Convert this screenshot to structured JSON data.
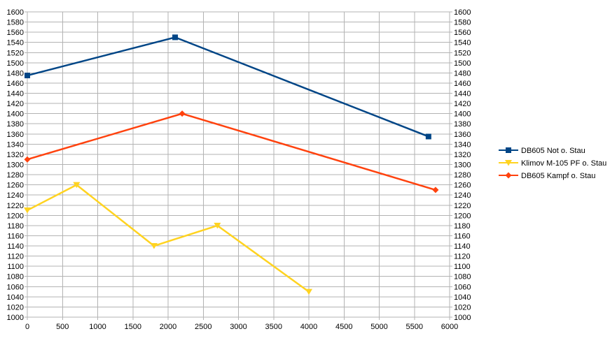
{
  "chart_data": {
    "type": "line",
    "xlim": [
      0,
      6000
    ],
    "ylim": [
      1000,
      1600
    ],
    "x_ticks": [
      0,
      500,
      1000,
      1500,
      2000,
      2500,
      3000,
      3500,
      4000,
      4500,
      5000,
      5500,
      6000
    ],
    "y_ticks": [
      1000,
      1020,
      1040,
      1060,
      1080,
      1100,
      1120,
      1140,
      1160,
      1180,
      1200,
      1220,
      1240,
      1260,
      1280,
      1300,
      1320,
      1340,
      1360,
      1380,
      1400,
      1420,
      1440,
      1460,
      1480,
      1500,
      1520,
      1540,
      1560,
      1580,
      1600
    ],
    "grid": true,
    "y_axis_mirrored": true,
    "legend_position": "right",
    "series": [
      {
        "name": "DB605 Not o. Stau",
        "color": "#004586",
        "marker": "square",
        "points": [
          [
            0,
            1475
          ],
          [
            2100,
            1550
          ],
          [
            5700,
            1355
          ]
        ]
      },
      {
        "name": "Klimov M-105 PF o. Stau",
        "color": "#ffd320",
        "marker": "triangle-down",
        "points": [
          [
            0,
            1210
          ],
          [
            700,
            1260
          ],
          [
            1800,
            1140
          ],
          [
            2700,
            1180
          ],
          [
            4000,
            1050
          ]
        ]
      },
      {
        "name": "DB605 Kampf o. Stau",
        "color": "#ff420e",
        "marker": "diamond",
        "points": [
          [
            0,
            1310
          ],
          [
            2200,
            1400
          ],
          [
            5800,
            1250
          ]
        ]
      }
    ]
  }
}
